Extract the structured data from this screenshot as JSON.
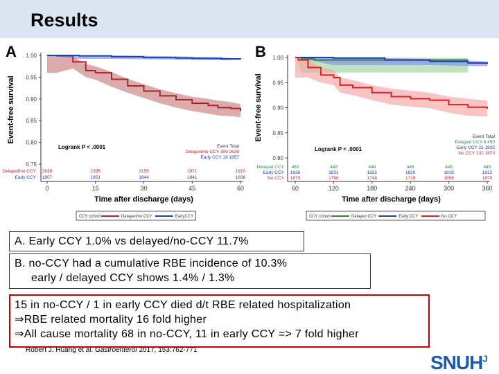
{
  "header": {
    "title": "Results"
  },
  "chart_data": [
    {
      "type": "line",
      "panel_label": "A",
      "ylabel": "Event-free survival",
      "xlabel": "Time after discharge (days)",
      "xlim": [
        0,
        60
      ],
      "ylim": [
        0.75,
        1.0
      ],
      "xticks": [
        0,
        15,
        30,
        45,
        60
      ],
      "yticks": [
        "0.75",
        "0.80",
        "0.85",
        "0.90",
        "0.95",
        "1.00"
      ],
      "annotation": "Logrank P < .0001",
      "event_table": {
        "header": [
          "Event",
          "Total"
        ],
        "rows": [
          {
            "name": "Delayed/no CCY",
            "event": "309",
            "total": "2639"
          },
          {
            "name": "Early CCY",
            "event": "19",
            "total": "1857"
          }
        ]
      },
      "at_risk": [
        {
          "name": "Delayed/no CCY",
          "values": [
            "2639",
            "2395",
            "2155",
            "1971",
            "1870"
          ]
        },
        {
          "name": "Early CCY",
          "values": [
            "1857",
            "1851",
            "1844",
            "1841",
            "1836"
          ]
        }
      ],
      "legend_title": "CCY cohort",
      "series": [
        {
          "name": "Delayed/no CCY",
          "color": "#a8262b",
          "band": "#c98080",
          "x": [
            0,
            3,
            8,
            12,
            15,
            20,
            25,
            30,
            35,
            40,
            45,
            50,
            53,
            57,
            60
          ],
          "y": [
            1.0,
            0.999,
            0.985,
            0.965,
            0.96,
            0.945,
            0.93,
            0.918,
            0.907,
            0.898,
            0.89,
            0.885,
            0.88,
            0.878,
            0.872
          ],
          "lo": [
            0.96,
            0.96,
            0.97,
            0.95,
            0.944,
            0.928,
            0.914,
            0.902,
            0.89,
            0.88,
            0.872,
            0.866,
            0.862,
            0.86,
            0.858
          ],
          "hi": [
            1.0,
            1.0,
            0.998,
            0.98,
            0.975,
            0.962,
            0.946,
            0.934,
            0.922,
            0.913,
            0.905,
            0.9,
            0.896,
            0.893,
            0.888
          ]
        },
        {
          "name": "EarlyCCY",
          "color": "#1f3fb5",
          "band": "#7f8ff0",
          "x": [
            0,
            10,
            20,
            30,
            40,
            45,
            54,
            60
          ],
          "y": [
            1.0,
            0.999,
            0.997,
            0.995,
            0.994,
            0.993,
            0.992,
            0.991
          ],
          "lo": [
            1.0,
            0.992,
            0.992,
            0.991,
            0.99,
            0.99,
            0.989,
            0.99
          ],
          "hi": [
            1.0,
            1.0,
            1.0,
            0.999,
            0.998,
            0.997,
            0.996,
            0.991
          ]
        }
      ]
    },
    {
      "type": "line",
      "panel_label": "B",
      "ylabel": "Event-free survival",
      "xlabel": "Time after discharge (days)",
      "xlim": [
        60,
        360
      ],
      "ylim": [
        0.8,
        1.0
      ],
      "xticks": [
        60,
        120,
        180,
        240,
        300,
        360
      ],
      "yticks": [
        "0.80",
        "0.85",
        "0.90",
        "0.95",
        "1.00"
      ],
      "annotation": "Logrank P < .0001",
      "event_table": {
        "header": [
          "Event",
          "Total"
        ],
        "rows": [
          {
            "name": "Delayed CCY",
            "event": "6",
            "total": "450"
          },
          {
            "name": "Early CCY",
            "event": "25",
            "total": "1835"
          },
          {
            "name": "No CCY",
            "event": "132",
            "total": "1870"
          }
        ]
      },
      "at_risk": [
        {
          "name": "Delayed CCY",
          "values": [
            "450",
            "448",
            "448",
            "446",
            "445",
            "445"
          ]
        },
        {
          "name": "Early CCY",
          "values": [
            "1836",
            "1831",
            "1825",
            "1820",
            "1818",
            "1812"
          ]
        },
        {
          "name": "No CCY",
          "values": [
            "1870",
            "1766",
            "1748",
            "1719",
            "1696",
            "1679"
          ]
        }
      ],
      "legend_title": "CCY cohort",
      "series": [
        {
          "name": "Delayed CCY",
          "color": "#2a8a3a",
          "band": "#9fd39f",
          "x": [
            60,
            70,
            90,
            330
          ],
          "y": [
            1.0,
            0.997,
            0.995,
            0.995
          ],
          "lo": [
            1.0,
            0.97,
            0.97,
            0.97
          ],
          "hi": [
            1.0,
            1.0,
            1.0,
            0.999
          ]
        },
        {
          "name": "Early CCY",
          "color": "#1f3fb5",
          "band": "#7f8ff0",
          "x": [
            60,
            120,
            200,
            270,
            330,
            360
          ],
          "y": [
            1.0,
            0.999,
            0.995,
            0.992,
            0.989,
            0.987
          ],
          "lo": [
            1.0,
            0.985,
            0.985,
            0.985,
            0.983,
            0.983
          ],
          "hi": [
            1.0,
            1.0,
            0.999,
            0.997,
            0.994,
            0.992
          ]
        },
        {
          "name": "No CCY",
          "color": "#e02020",
          "band": "#f5a5a5",
          "x": [
            60,
            65,
            80,
            100,
            120,
            130,
            150,
            180,
            210,
            240,
            270,
            300,
            330,
            360
          ],
          "y": [
            1.0,
            0.995,
            0.98,
            0.965,
            0.96,
            0.945,
            0.94,
            0.93,
            0.922,
            0.918,
            0.915,
            0.906,
            0.901,
            0.898
          ],
          "lo": [
            0.96,
            0.96,
            0.96,
            0.95,
            0.945,
            0.93,
            0.925,
            0.915,
            0.906,
            0.902,
            0.899,
            0.89,
            0.884,
            0.882
          ],
          "hi": [
            1.0,
            1.0,
            0.995,
            0.98,
            0.975,
            0.96,
            0.955,
            0.945,
            0.938,
            0.934,
            0.93,
            0.922,
            0.918,
            0.914
          ]
        }
      ]
    }
  ],
  "boxes": {
    "a": "A. Early CCY 1.0% vs delayed/no-CCY 11.7%",
    "b1": "B. no-CCY had a cumulative RBE incidence of 10.3%",
    "b2": "early / delayed CCY shows 1.4% / 1.3%",
    "c1": "15 in no-CCY / 1 in early CCY died d/t RBE related hospitalization",
    "c2": "⇒RBE related mortality 16 fold higher",
    "c3": "⇒All cause mortality  68 in no-CCY, 11 in early CCY  => 7 fold higher"
  },
  "citation": {
    "authors": "Robert J. Huang et al.",
    "journal": "Gastroenterol",
    "rest": "2017, 153:762-771"
  },
  "logo": {
    "text": "SNUH",
    "mark": "J"
  }
}
